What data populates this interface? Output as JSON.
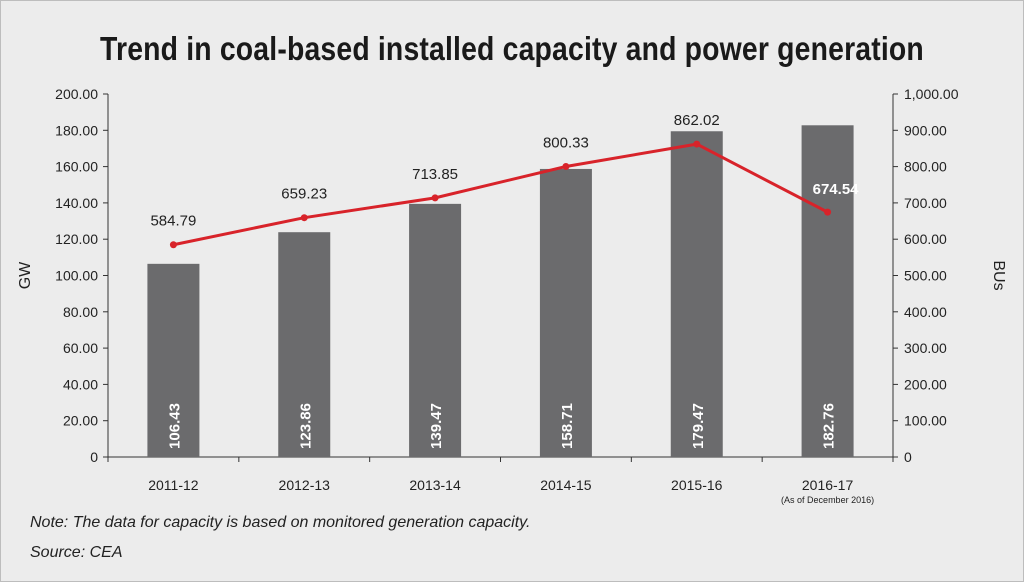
{
  "chart_data": {
    "type": "bar+line",
    "title": "Trend in coal-based installed capacity and power generation",
    "categories": [
      "2011-12",
      "2012-13",
      "2013-14",
      "2014-15",
      "2015-16",
      "2016-17"
    ],
    "category_sublabels": [
      "",
      "",
      "",
      "",
      "",
      "(As of December 2016)"
    ],
    "series": [
      {
        "name": "Installed capacity",
        "type": "bar",
        "axis": "left",
        "values": [
          106.43,
          123.86,
          139.47,
          158.71,
          179.47,
          182.76
        ],
        "labels": [
          "106.43",
          "123.86",
          "139.47",
          "158.71",
          "179.47",
          "182.76"
        ],
        "color": "#6b6b6d"
      },
      {
        "name": "Power generation",
        "type": "line",
        "axis": "right",
        "values": [
          584.79,
          659.23,
          713.85,
          800.33,
          862.02,
          674.54
        ],
        "labels": [
          "584.79",
          "659.23",
          "713.85",
          "800.33",
          "862.02",
          "674.54"
        ],
        "color": "#d8232a"
      }
    ],
    "ylabel_left": "GW",
    "ylabel_right": "BUs",
    "ylim_left": [
      0,
      200
    ],
    "ylim_right": [
      0,
      1000
    ],
    "yticks_left": [
      "0",
      "20.00",
      "40.00",
      "60.00",
      "80.00",
      "100.00",
      "120.00",
      "140.00",
      "160.00",
      "180.00",
      "200.00"
    ],
    "yticks_right": [
      "0",
      "100.00",
      "200.00",
      "300.00",
      "400.00",
      "500.00",
      "600.00",
      "700.00",
      "800.00",
      "900.00",
      "1,000.00"
    ],
    "grid": false
  },
  "notes": {
    "note": "Note: The data for capacity is based on monitored generation capacity.",
    "source": "Source: CEA"
  }
}
